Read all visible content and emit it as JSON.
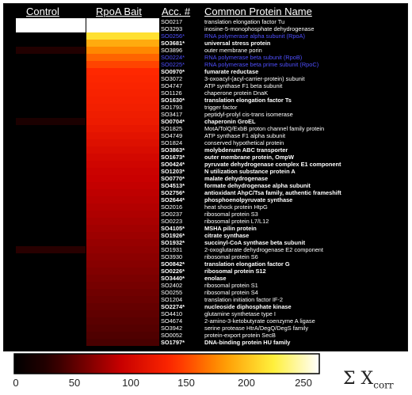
{
  "headers": {
    "control": "Control",
    "bait": "RpoA Bait",
    "acc": "Acc. #",
    "name": "Common Protein Name"
  },
  "colorbar": {
    "ticks": [
      "0",
      "50",
      "100",
      "150",
      "200",
      "250"
    ],
    "tick_values": [
      0,
      50,
      100,
      150,
      200,
      250
    ],
    "min": 0,
    "max": 250
  },
  "sigma_label": {
    "symbol": "Σ X",
    "subscript": "corr"
  },
  "chart_data": {
    "type": "heatmap",
    "columns": [
      "Control",
      "RpoA Bait"
    ],
    "value_range": [
      0,
      250
    ],
    "rows": [
      {
        "acc": "SO0217",
        "name": "translation elongation factor Tu",
        "style": "normal",
        "control": 250,
        "bait": 250
      },
      {
        "acc": "SO3293",
        "name": "inosine-5-monophosphate dehydrogenase",
        "style": "normal",
        "control": 250,
        "bait": 250
      },
      {
        "acc": "SO0256*",
        "name": "RNA polymerase alpha subunit (RpoA)",
        "style": "blue",
        "control": 0,
        "bait": 205
      },
      {
        "acc": "SO3681*",
        "name": "universal stress protein",
        "style": "bold",
        "control": 0,
        "bait": 180
      },
      {
        "acc": "SO3896",
        "name": "outer membrane porin",
        "style": "normal",
        "control": 25,
        "bait": 165
      },
      {
        "acc": "SO0224*",
        "name": "RNA polymerase beta subunit (RpoB)",
        "style": "blue",
        "control": 0,
        "bait": 152
      },
      {
        "acc": "SO0225*",
        "name": "RNA polymerase beta prime subunit (RpoC)",
        "style": "blue",
        "control": 0,
        "bait": 140
      },
      {
        "acc": "SO0970*",
        "name": "fumarate reductase",
        "style": "bold",
        "control": 0,
        "bait": 130
      },
      {
        "acc": "SO3072",
        "name": "3-oxoacyl-(acyl-carrier-protein) subunit",
        "style": "normal",
        "control": 0,
        "bait": 128
      },
      {
        "acc": "SO4747",
        "name": "ATP synthase F1 beta subunit",
        "style": "normal",
        "control": 0,
        "bait": 126
      },
      {
        "acc": "SO1126",
        "name": "chaperone protein DnaK",
        "style": "normal",
        "control": 0,
        "bait": 124
      },
      {
        "acc": "SO1630*",
        "name": "translation elongation factor Ts",
        "style": "bold",
        "control": 0,
        "bait": 122
      },
      {
        "acc": "SO1793",
        "name": "trigger factor",
        "style": "normal",
        "control": 0,
        "bait": 120
      },
      {
        "acc": "SO3417",
        "name": "peptidyl-prolyl cis-trans isomerase",
        "style": "normal",
        "control": 0,
        "bait": 118
      },
      {
        "acc": "SO0704*",
        "name": "chaperonin GroEL",
        "style": "bold",
        "control": 20,
        "bait": 116
      },
      {
        "acc": "SO1825",
        "name": "MotA/TolQ/ExbB proton channel family protein",
        "style": "normal",
        "control": 0,
        "bait": 112
      },
      {
        "acc": "SO4749",
        "name": "ATP synthase F1 alpha subunit",
        "style": "normal",
        "control": 0,
        "bait": 108
      },
      {
        "acc": "SO1824",
        "name": "conserved hypothetical protein",
        "style": "normal",
        "control": 0,
        "bait": 104
      },
      {
        "acc": "SO3863*",
        "name": "molybdenum ABC transporter",
        "style": "bold",
        "control": 0,
        "bait": 100
      },
      {
        "acc": "SO1673*",
        "name": "outer membrane protein, OmpW",
        "style": "bold",
        "control": 0,
        "bait": 96
      },
      {
        "acc": "SO0424*",
        "name": "pyruvate dehydrogenase complex E1 component",
        "style": "bold",
        "control": 0,
        "bait": 93
      },
      {
        "acc": "SO1203*",
        "name": "N utilization substance protein A",
        "style": "bold",
        "control": 0,
        "bait": 90
      },
      {
        "acc": "SO0770*",
        "name": "malate dehydrogenase",
        "style": "bold",
        "control": 0,
        "bait": 88
      },
      {
        "acc": "SO4513*",
        "name": "formate dehydrogenase alpha subunit",
        "style": "bold",
        "control": 0,
        "bait": 86
      },
      {
        "acc": "SO2756*",
        "name": "antioxidant AhpC/Tsa family, authentic frameshift",
        "style": "bold",
        "control": 0,
        "bait": 84
      },
      {
        "acc": "SO2644*",
        "name": "phosphoenolpyruvate synthase",
        "style": "bold",
        "control": 0,
        "bait": 82
      },
      {
        "acc": "SO2016",
        "name": "heat shock protein HtpG",
        "style": "normal",
        "control": 0,
        "bait": 80
      },
      {
        "acc": "SO0237",
        "name": "ribosomal protein S3",
        "style": "normal",
        "control": 0,
        "bait": 78
      },
      {
        "acc": "SO0223",
        "name": "ribosomal protein L7/L12",
        "style": "normal",
        "control": 0,
        "bait": 76
      },
      {
        "acc": "SO4105*",
        "name": "MSHA pilin protein",
        "style": "bold",
        "control": 0,
        "bait": 74
      },
      {
        "acc": "SO1926*",
        "name": "citrate synthase",
        "style": "bold",
        "control": 0,
        "bait": 72
      },
      {
        "acc": "SO1932*",
        "name": "succinyl-CoA synthase beta subunit",
        "style": "bold",
        "control": 0,
        "bait": 70
      },
      {
        "acc": "SO1931",
        "name": "2-oxoglutarate dehydrogenase E2 component",
        "style": "normal",
        "control": 30,
        "bait": 68
      },
      {
        "acc": "SO3930",
        "name": "ribosomal protein S6",
        "style": "normal",
        "control": 0,
        "bait": 66
      },
      {
        "acc": "SO0842*",
        "name": "translation elongation factor G",
        "style": "bold",
        "control": 0,
        "bait": 64
      },
      {
        "acc": "SO0226*",
        "name": "ribosomal protein S12",
        "style": "bold",
        "control": 0,
        "bait": 62
      },
      {
        "acc": "SO3440*",
        "name": "enolase",
        "style": "bold",
        "control": 0,
        "bait": 60
      },
      {
        "acc": "SO2402",
        "name": "ribosomal protein S1",
        "style": "normal",
        "control": 0,
        "bait": 58
      },
      {
        "acc": "SO0255",
        "name": "ribosomal protein S4",
        "style": "normal",
        "control": 0,
        "bait": 56
      },
      {
        "acc": "SO1204",
        "name": "translation initiation factor IF-2",
        "style": "normal",
        "control": 0,
        "bait": 54
      },
      {
        "acc": "SO2274*",
        "name": "nucleoside diphosphate kinase",
        "style": "bold",
        "control": 0,
        "bait": 52
      },
      {
        "acc": "SO4410",
        "name": "glutamine synthetase type I",
        "style": "normal",
        "control": 0,
        "bait": 50
      },
      {
        "acc": "SO4674",
        "name": "2-amino-3-ketobutyrate coenzyme A ligase",
        "style": "normal",
        "control": 0,
        "bait": 48
      },
      {
        "acc": "SO3942",
        "name": "serine protease HtrA/DegQ/DegS family",
        "style": "normal",
        "control": 0,
        "bait": 46
      },
      {
        "acc": "SO0052",
        "name": "protein-export protein SecB",
        "style": "normal",
        "control": 0,
        "bait": 44
      },
      {
        "acc": "SO1797*",
        "name": "DNA-binding protein HU family",
        "style": "bold",
        "control": 0,
        "bait": 42
      }
    ]
  }
}
